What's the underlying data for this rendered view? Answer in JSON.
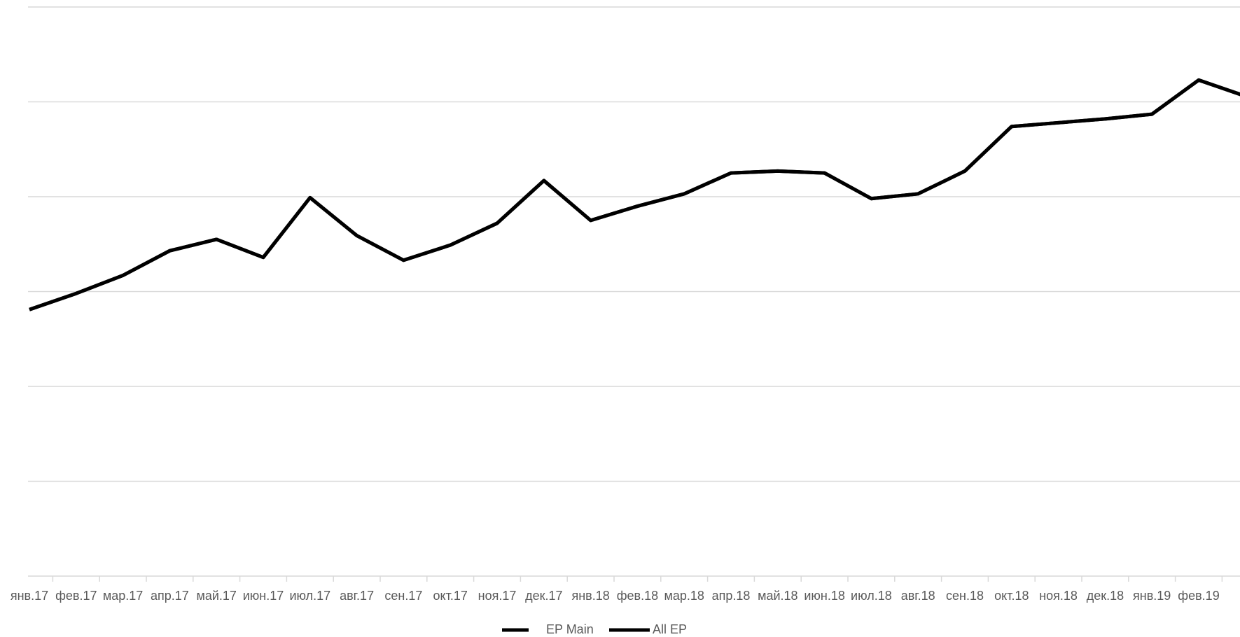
{
  "chart_data": {
    "type": "line",
    "categories": [
      "янв.17",
      "фев.17",
      "мар.17",
      "апр.17",
      "май.17",
      "июн.17",
      "июл.17",
      "авг.17",
      "сен.17",
      "окт.17",
      "ноя.17",
      "дек.17",
      "янв.18",
      "фев.18",
      "мар.18",
      "апр.18",
      "май.18",
      "июн.18",
      "июл.18",
      "авг.18",
      "сен.18",
      "окт.18",
      "ноя.18",
      "дек.18",
      "янв.19",
      "фев.19",
      null
    ],
    "series": [
      {
        "name": "EP Main",
        "color": "#000000",
        "values": [
          2.81,
          2.98,
          3.17,
          3.43,
          3.55,
          3.36,
          3.99,
          3.59,
          3.33,
          3.49,
          3.72,
          4.17,
          3.75,
          3.9,
          4.03,
          4.25,
          4.27,
          4.25,
          3.98,
          4.03,
          4.27,
          4.74,
          4.78,
          4.82,
          4.87,
          5.23,
          5.06
        ]
      },
      {
        "name": "All EP",
        "color": "#000000",
        "values": [
          2.81,
          2.98,
          3.17,
          3.43,
          3.55,
          3.36,
          3.99,
          3.59,
          3.33,
          3.49,
          3.72,
          4.17,
          3.75,
          3.9,
          4.03,
          4.25,
          4.27,
          4.25,
          3.98,
          4.03,
          4.27,
          4.74,
          4.78,
          4.82,
          4.87,
          5.23,
          5.06
        ]
      }
    ],
    "ylim": [
      0,
      6
    ],
    "yticks": [
      0,
      1,
      2,
      3,
      4,
      5,
      6
    ],
    "grid": true
  }
}
